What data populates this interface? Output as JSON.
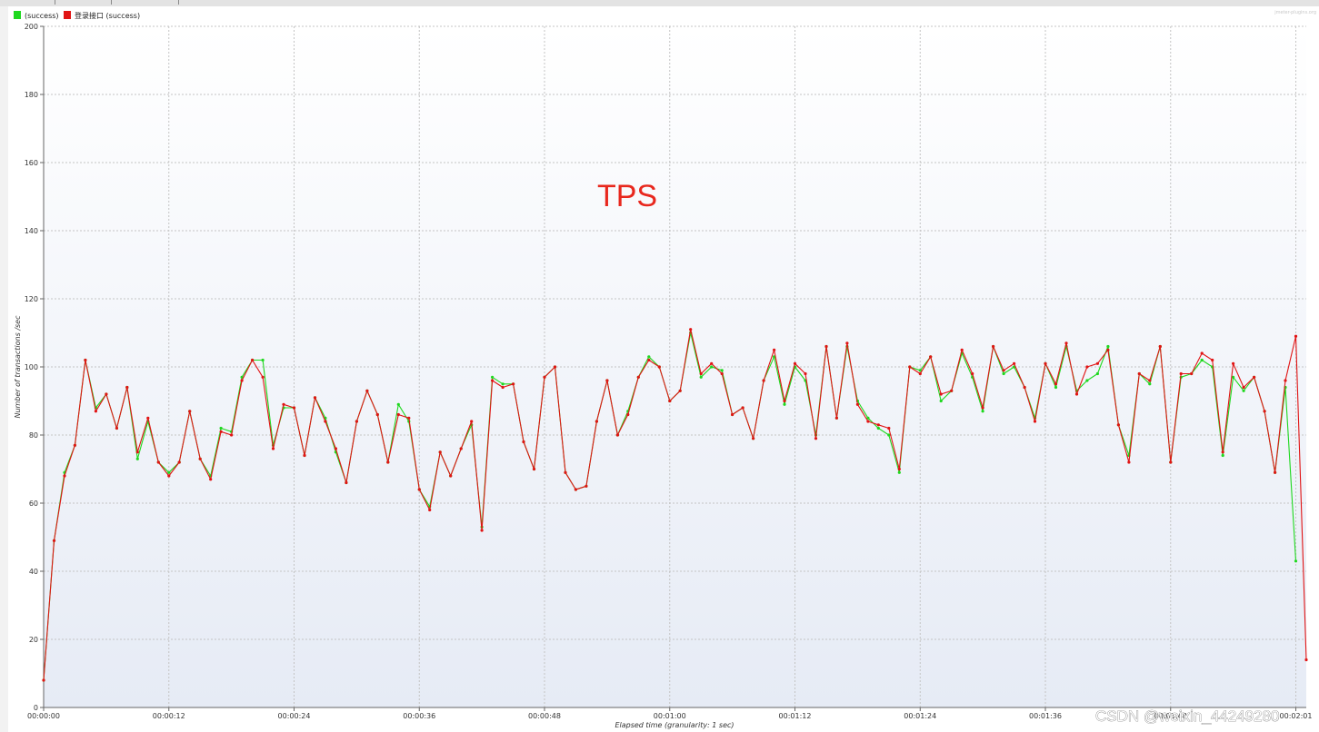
{
  "chart_data": {
    "type": "line",
    "ylabel": "Number of transactions /sec",
    "xlabel": "Elapsed time (granularity: 1 sec)",
    "ylim": [
      0,
      200
    ],
    "yticks": [
      0,
      20,
      40,
      60,
      80,
      100,
      120,
      140,
      160,
      180,
      200
    ],
    "xlim_seconds": [
      0,
      121
    ],
    "xticks": [
      {
        "t": 0,
        "label": "00:00:00"
      },
      {
        "t": 12,
        "label": "00:00:12"
      },
      {
        "t": 24,
        "label": "00:00:24"
      },
      {
        "t": 36,
        "label": "00:00:36"
      },
      {
        "t": 48,
        "label": "00:00:48"
      },
      {
        "t": 60,
        "label": "00:01:00"
      },
      {
        "t": 72,
        "label": "00:01:12"
      },
      {
        "t": 84,
        "label": "00:01:24"
      },
      {
        "t": 96,
        "label": "00:01:36"
      },
      {
        "t": 108,
        "label": "00:01:48"
      },
      {
        "t": 120,
        "label": "00:02:01"
      }
    ],
    "grid": true,
    "legend_position": "top-left",
    "annotation": {
      "text": "TPS",
      "color": "#e8281e"
    },
    "series": [
      {
        "name": "(success)",
        "color": "#1fd81f",
        "values": [
          8,
          49,
          69,
          77,
          102,
          88,
          92,
          82,
          94,
          73,
          84,
          72,
          69,
          72,
          87,
          73,
          68,
          82,
          81,
          97,
          102,
          102,
          77,
          88,
          88,
          74,
          91,
          85,
          75,
          66,
          84,
          93,
          86,
          72,
          89,
          84,
          64,
          59,
          75,
          68,
          76,
          83,
          53,
          97,
          95,
          95,
          78,
          70,
          97,
          100,
          69,
          64,
          65,
          84,
          96,
          80,
          87,
          97,
          103,
          100,
          90,
          93,
          110,
          97,
          100,
          99,
          86,
          88,
          79,
          96,
          103,
          89,
          100,
          96,
          80,
          106,
          85,
          106,
          90,
          85,
          82,
          80,
          69,
          100,
          99,
          103,
          90,
          93,
          104,
          97,
          87,
          106,
          98,
          100,
          94,
          85,
          101,
          94,
          106,
          93,
          96,
          98,
          106,
          83,
          74,
          98,
          95,
          106,
          72,
          97,
          98,
          102,
          100,
          74,
          97,
          93,
          97,
          87,
          69,
          94,
          43,
          null
        ]
      },
      {
        "name": "登录接口 (success)",
        "color": "#e11414",
        "values": [
          8,
          49,
          68,
          77,
          102,
          87,
          92,
          82,
          94,
          75,
          85,
          72,
          68,
          72,
          87,
          73,
          67,
          81,
          80,
          96,
          102,
          97,
          76,
          89,
          88,
          74,
          91,
          84,
          76,
          66,
          84,
          93,
          86,
          72,
          86,
          85,
          64,
          58,
          75,
          68,
          76,
          84,
          52,
          96,
          94,
          95,
          78,
          70,
          97,
          100,
          69,
          64,
          65,
          84,
          96,
          80,
          86,
          97,
          102,
          100,
          90,
          93,
          111,
          98,
          101,
          98,
          86,
          88,
          79,
          96,
          105,
          90,
          101,
          98,
          79,
          106,
          85,
          107,
          89,
          84,
          83,
          82,
          70,
          100,
          98,
          103,
          92,
          93,
          105,
          98,
          88,
          106,
          99,
          101,
          94,
          84,
          101,
          95,
          107,
          92,
          100,
          101,
          105,
          83,
          72,
          98,
          96,
          106,
          72,
          98,
          98,
          104,
          102,
          75,
          101,
          94,
          97,
          87,
          69,
          96,
          109,
          14
        ]
      }
    ]
  },
  "watermark": "jmeter-plugins.org",
  "credit": "CSDN @weixin_44249280"
}
